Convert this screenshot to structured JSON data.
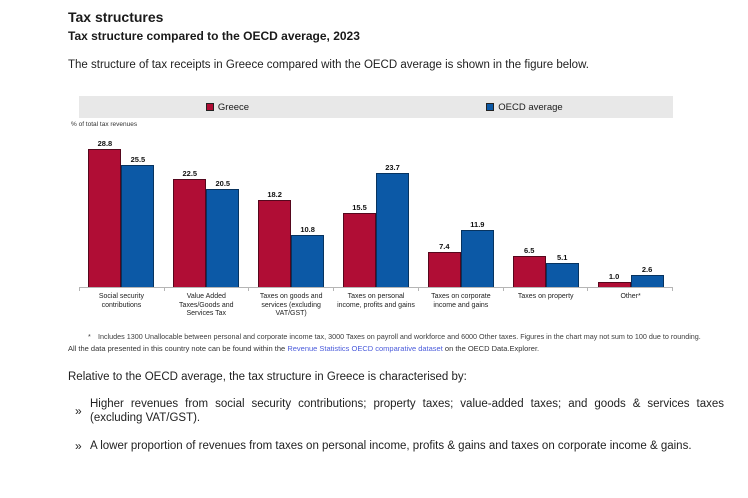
{
  "page": {
    "title": "Tax structures",
    "subtitle": "Tax structure compared to the OECD average, 2023",
    "intro": "The structure of tax receipts in Greece compared with the OECD average is shown in the figure below."
  },
  "chart_data": {
    "type": "bar",
    "title": "Tax structure compared to the OECD average, 2023",
    "ylabel": "% of total tax revenues",
    "xlabel": "",
    "ylim": [
      0,
      30
    ],
    "grid": false,
    "legend_position": "top",
    "categories": [
      "Social security contributions",
      "Value Added Taxes/Goods and Services Tax",
      "Taxes on goods and services (excluding VAT/GST)",
      "Taxes on personal income, profits and gains",
      "Taxes on corporate income and gains",
      "Taxes on property",
      "Other*"
    ],
    "series": [
      {
        "name": "Greece",
        "color": "#b00d35",
        "border_color": "#55071d",
        "values": [
          28.8,
          22.5,
          18.2,
          15.5,
          7.4,
          6.5,
          1.0
        ]
      },
      {
        "name": "OECD average",
        "color": "#0c59a6",
        "border_color": "#07335f",
        "values": [
          25.5,
          20.5,
          10.8,
          23.7,
          11.9,
          5.1,
          2.6
        ]
      }
    ]
  },
  "footnotes": {
    "asterisk": "*",
    "note": "Includes 1300 Unallocable between personal and corporate income tax, 3000 Taxes on payroll and workforce and 6000 Other taxes. Figures in the chart may not sum to 100 due to rounding.",
    "source_prefix": "All the data presented in this country note can be found within the ",
    "source_link": "Revenue Statistics OECD comparative dataset",
    "source_suffix": " on the OECD Data.Explorer."
  },
  "summary": {
    "lead": "Relative to the OECD average, the tax structure in Greece is characterised by:",
    "bullet_marker": "»",
    "bullets": [
      "Higher revenues from social security contributions; property taxes; value-added taxes; and goods & services taxes (excluding VAT/GST).",
      "A lower proportion of revenues from taxes on personal income, profits & gains and taxes on corporate income & gains."
    ]
  },
  "colors": {
    "greece": "#b00d35",
    "oecd_average": "#0c59a6",
    "legend_band": "#e8e8e8",
    "link": "#4a5bdb"
  }
}
